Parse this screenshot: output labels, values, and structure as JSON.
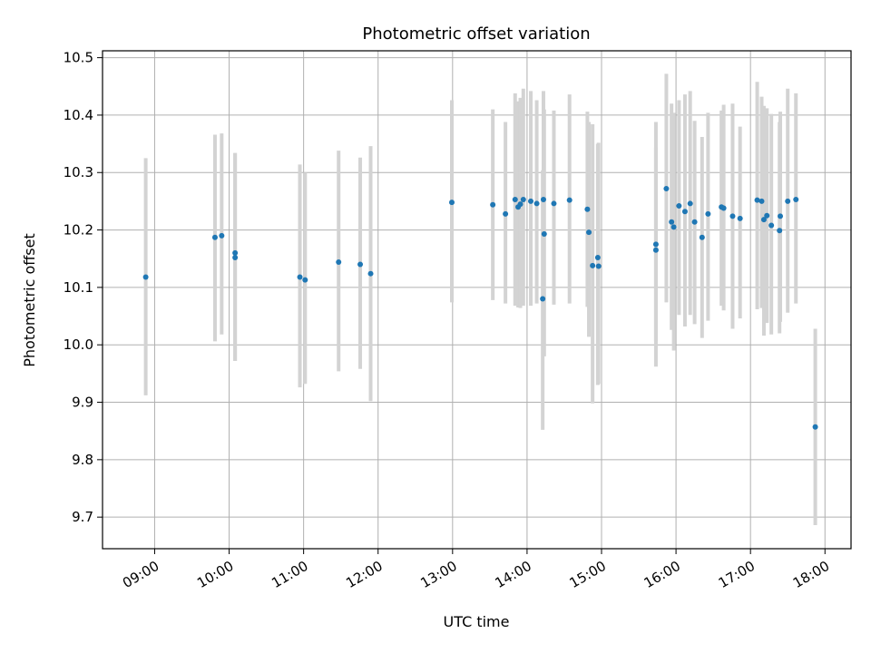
{
  "chart_data": {
    "type": "scatter",
    "title": "Photometric offset variation",
    "xlabel": "UTC time",
    "ylabel": "Photometric offset",
    "x_unit": "UTC hours",
    "xlim": [
      8.3,
      18.35
    ],
    "ylim": [
      9.645,
      10.512
    ],
    "x_ticks": [
      9,
      10,
      11,
      12,
      13,
      14,
      15,
      16,
      17,
      18
    ],
    "x_tick_labels": [
      "09:00",
      "10:00",
      "11:00",
      "12:00",
      "13:00",
      "14:00",
      "15:00",
      "16:00",
      "17:00",
      "18:00"
    ],
    "y_ticks": [
      9.7,
      9.8,
      9.9,
      10.0,
      10.1,
      10.2,
      10.3,
      10.4,
      10.5
    ],
    "y_tick_labels": [
      "9.7",
      "9.8",
      "9.9",
      "10.0",
      "10.1",
      "10.2",
      "10.3",
      "10.4",
      "10.5"
    ],
    "grid": true,
    "colors": {
      "point": "#1f77b4",
      "errorbar": "#d3d3d3",
      "grid": "#b0b0b0",
      "axes": "#000000"
    },
    "series": [
      {
        "x": [
          8.88,
          9.81,
          9.9,
          10.08,
          10.08,
          10.95,
          11.02,
          11.47,
          11.76,
          11.9,
          12.99,
          13.54,
          13.71,
          13.84,
          13.88,
          13.91,
          13.95,
          14.05,
          14.13,
          14.22,
          14.23,
          14.21,
          14.36,
          14.57,
          14.81,
          14.83,
          14.88,
          14.95,
          14.96,
          15.73,
          15.73,
          15.87,
          15.94,
          15.97,
          16.04,
          16.12,
          16.19,
          16.25,
          16.35,
          16.43,
          16.61,
          16.64,
          16.76,
          16.86,
          17.09,
          17.15,
          17.18,
          17.22,
          17.28,
          17.39,
          17.4,
          17.5,
          17.61,
          17.87
        ],
        "y": [
          10.118,
          10.187,
          10.19,
          10.16,
          10.152,
          10.118,
          10.113,
          10.144,
          10.14,
          10.124,
          10.248,
          10.244,
          10.228,
          10.253,
          10.24,
          10.245,
          10.253,
          10.25,
          10.246,
          10.253,
          10.193,
          10.08,
          10.246,
          10.252,
          10.236,
          10.196,
          10.138,
          10.152,
          10.137,
          10.175,
          10.165,
          10.272,
          10.214,
          10.205,
          10.242,
          10.232,
          10.246,
          10.214,
          10.187,
          10.228,
          10.24,
          10.238,
          10.224,
          10.22,
          10.252,
          10.25,
          10.218,
          10.225,
          10.208,
          10.199,
          10.224,
          10.25,
          10.253,
          9.857
        ],
        "err_low": [
          9.912,
          10.006,
          10.018,
          9.972,
          9.972,
          9.926,
          9.932,
          9.954,
          9.958,
          9.902,
          10.074,
          10.078,
          10.072,
          10.068,
          10.065,
          10.064,
          10.068,
          10.068,
          10.072,
          10.062,
          9.98,
          9.852,
          10.07,
          10.072,
          10.066,
          10.014,
          9.898,
          9.93,
          9.932,
          9.962,
          10.006,
          10.074,
          10.026,
          9.99,
          10.052,
          10.032,
          10.052,
          10.036,
          10.012,
          10.042,
          10.068,
          10.06,
          10.028,
          10.046,
          10.062,
          10.064,
          10.016,
          10.038,
          10.018,
          10.02,
          10.04,
          10.056,
          10.072,
          9.686
        ],
        "err_high": [
          10.325,
          10.366,
          10.368,
          10.334,
          10.334,
          10.314,
          10.3,
          10.338,
          10.326,
          10.346,
          10.426,
          10.41,
          10.388,
          10.438,
          10.424,
          10.43,
          10.446,
          10.442,
          10.426,
          10.442,
          10.41,
          10.304,
          10.408,
          10.436,
          10.406,
          10.388,
          10.384,
          10.35,
          10.352,
          10.344,
          10.388,
          10.472,
          10.42,
          10.404,
          10.426,
          10.436,
          10.442,
          10.39,
          10.362,
          10.404,
          10.408,
          10.418,
          10.42,
          10.38,
          10.458,
          10.432,
          10.416,
          10.412,
          10.402,
          10.388,
          10.406,
          10.446,
          10.438,
          10.028
        ]
      }
    ]
  }
}
